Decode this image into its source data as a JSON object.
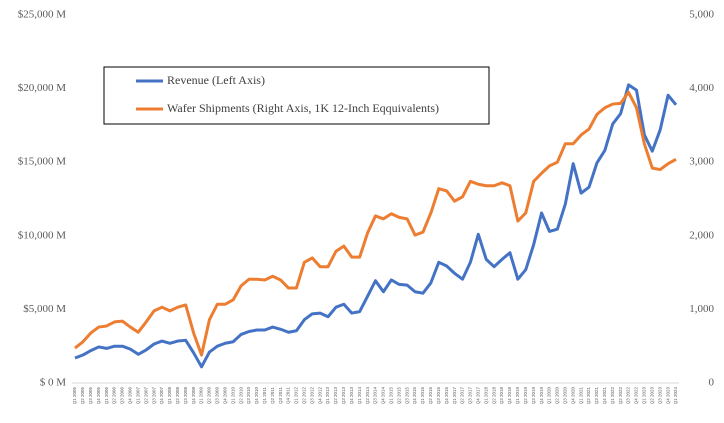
{
  "chart_data": {
    "type": "line",
    "categories": [
      "Q1 2005",
      "Q2 2005",
      "Q3 2005",
      "Q4 2005",
      "Q1 2006",
      "Q2 2006",
      "Q3 2006",
      "Q4 2006",
      "Q1 2007",
      "Q2 2007",
      "Q3 2007",
      "Q4 2007",
      "Q1 2008",
      "Q2 2008",
      "Q3 2008",
      "Q4 2008",
      "Q1 2009",
      "Q2 2009",
      "Q3 2009",
      "Q4 2009",
      "Q1 2010",
      "Q2 2010",
      "Q3 2010",
      "Q4 2010",
      "Q1 2011",
      "Q2 2011",
      "Q3 2011",
      "Q4 2011",
      "Q1 2012",
      "Q2 2012",
      "Q3 2012",
      "Q4 2012",
      "Q1 2013",
      "Q2 2013",
      "Q3 2013",
      "Q4 2013",
      "Q1 2014",
      "Q2 2014",
      "Q3 2014",
      "Q4 2014",
      "Q1 2015",
      "Q2 2015",
      "Q3 2015",
      "Q4 2015",
      "Q1 2016",
      "Q2 2016",
      "Q3 2016",
      "Q4 2016",
      "Q1 2017",
      "Q2 2017",
      "Q3 2017",
      "Q4 2017",
      "Q1 2018",
      "Q2 2018",
      "Q3 2018",
      "Q4 2018",
      "Q1 2019",
      "Q2 2019",
      "Q3 2019",
      "Q4 2019",
      "Q1 2020",
      "Q2 2020",
      "Q3 2020",
      "Q4 2020",
      "Q1 2021",
      "Q2 2021",
      "Q3 2021",
      "Q4 2021",
      "Q1 2022",
      "Q2 2022",
      "Q3 2022",
      "Q4 2022",
      "Q1 2023",
      "Q2 2023",
      "Q3 2023",
      "Q4 2023",
      "Q1 2024"
    ],
    "series": [
      {
        "name": "Revenue (Left Axis)",
        "color": "#4472c4",
        "values": [
          1700,
          1900,
          2200,
          2450,
          2350,
          2500,
          2500,
          2300,
          1950,
          2250,
          2650,
          2850,
          2700,
          2850,
          2900,
          2050,
          1100,
          2100,
          2500,
          2700,
          2800,
          3300,
          3500,
          3600,
          3600,
          3800,
          3650,
          3450,
          3550,
          4300,
          4700,
          4750,
          4500,
          5150,
          5350,
          4750,
          4850,
          5900,
          6950,
          6200,
          7000,
          6700,
          6650,
          6200,
          6100,
          6800,
          8200,
          7950,
          7450,
          7050,
          8200,
          10100,
          8400,
          7900,
          8400,
          8850,
          7050,
          7700,
          9400,
          11550,
          10300,
          10450,
          12150,
          14900,
          12900,
          13300,
          14950,
          15800,
          17600,
          18300,
          20250,
          19900,
          16850,
          15750,
          17200,
          19550,
          18900
        ]
      },
      {
        "name": "Wafer Shipments (Right Axis, 1K 12-Inch Eqquivalents)",
        "color": "#ed7d31",
        "axis": "y2",
        "values": [
          475,
          560,
          680,
          760,
          775,
          830,
          840,
          760,
          690,
          830,
          980,
          1030,
          980,
          1030,
          1060,
          680,
          380,
          860,
          1070,
          1070,
          1130,
          1320,
          1410,
          1410,
          1400,
          1450,
          1400,
          1290,
          1290,
          1640,
          1700,
          1580,
          1580,
          1790,
          1860,
          1710,
          1710,
          2040,
          2270,
          2230,
          2300,
          2250,
          2230,
          2010,
          2050,
          2310,
          2640,
          2610,
          2470,
          2530,
          2740,
          2700,
          2680,
          2680,
          2720,
          2680,
          2200,
          2310,
          2740,
          2850,
          2950,
          3000,
          3250,
          3250,
          3370,
          3450,
          3650,
          3740,
          3790,
          3800,
          3950,
          3740,
          3250,
          2920,
          2900,
          2980,
          3040
        ]
      }
    ],
    "ylim": [
      0,
      25000
    ],
    "yticks": [
      {
        "value": 0,
        "label": "$ 0 M"
      },
      {
        "value": 5000,
        "label": "$5,000 M"
      },
      {
        "value": 10000,
        "label": "$10,000 M"
      },
      {
        "value": 15000,
        "label": "$15,000 M"
      },
      {
        "value": 20000,
        "label": "$20,000 M"
      },
      {
        "value": 25000,
        "label": "$25,000 M"
      }
    ],
    "y2lim": [
      0,
      5000
    ],
    "y2ticks": [
      0,
      {
        "value": 1000,
        "label": "1,000"
      },
      {
        "value": 2000,
        "label": "2,000"
      },
      {
        "value": 3000,
        "label": "3,000"
      },
      {
        "value": 4000,
        "label": "4,000"
      },
      {
        "value": 5000,
        "label": "5,000"
      }
    ]
  }
}
